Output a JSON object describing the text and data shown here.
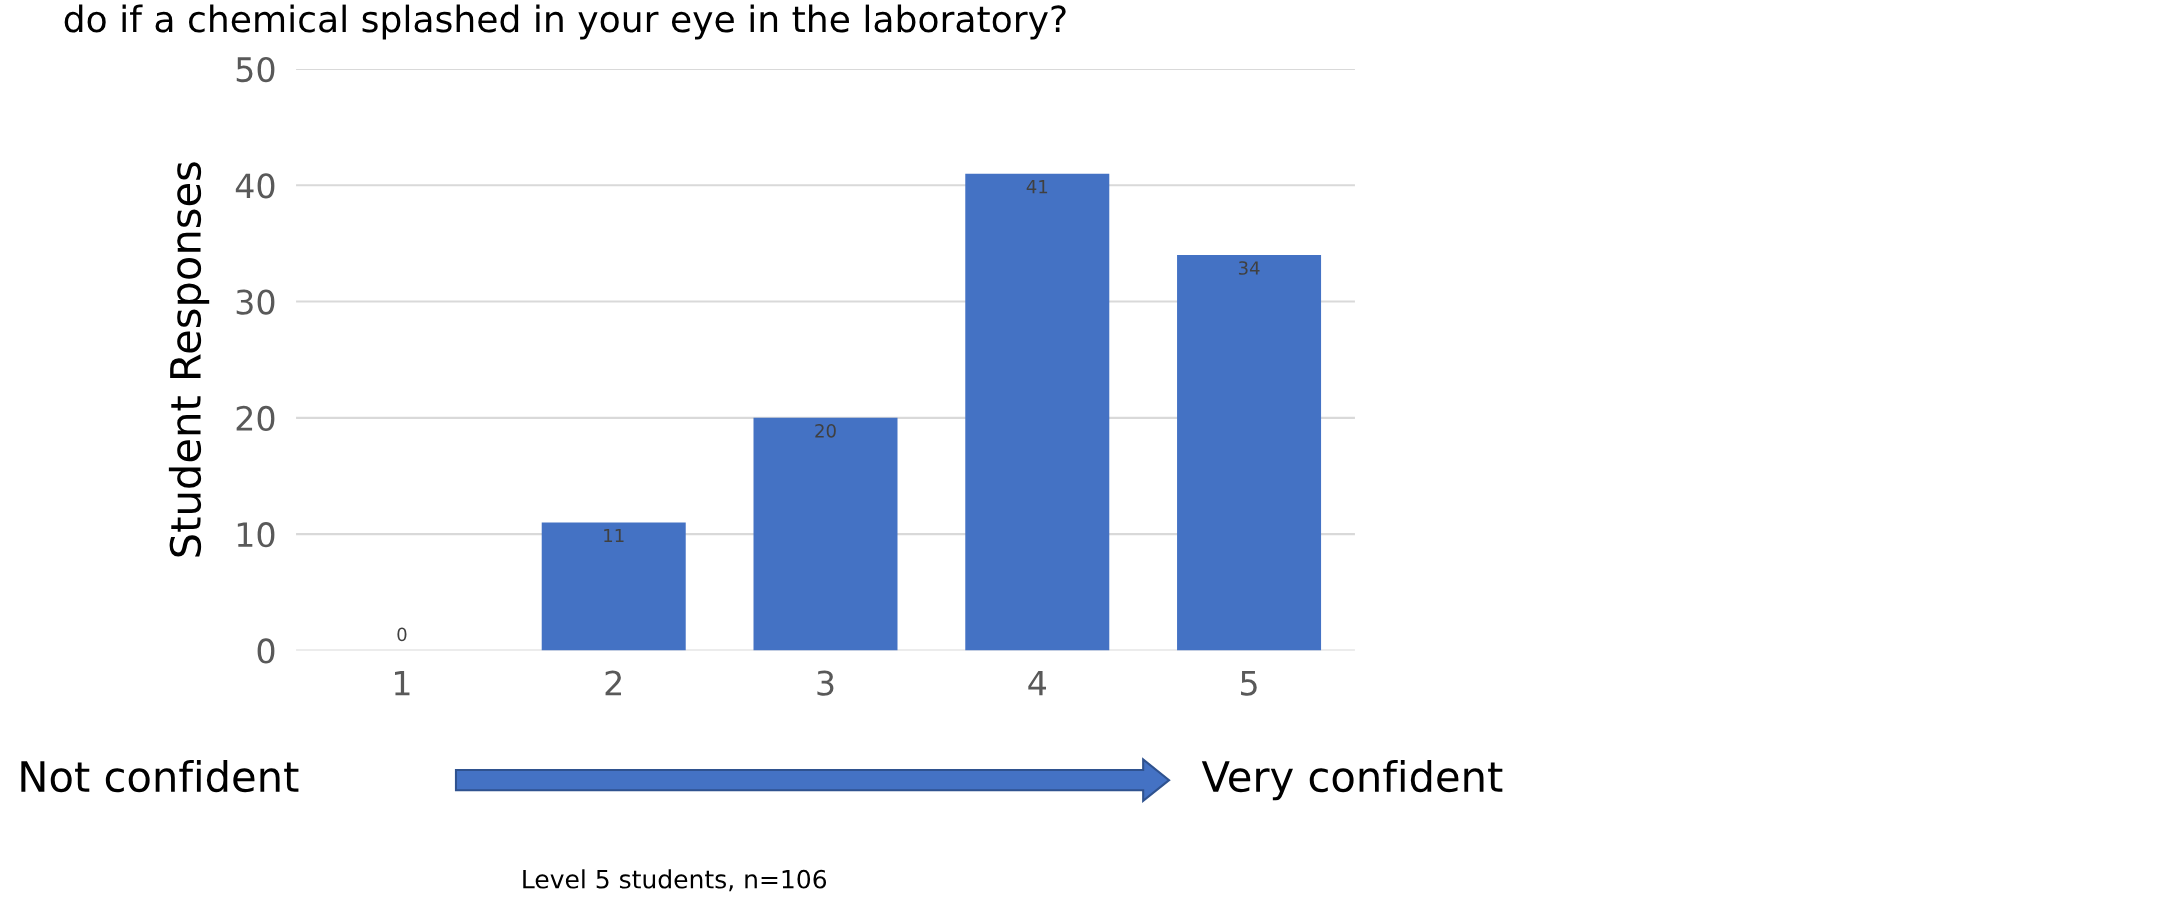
{
  "chart_data": {
    "type": "bar",
    "title": "do if a chemical splashed in your eye in the laboratory?",
    "ylabel": "Student Responses",
    "categories": [
      "1",
      "2",
      "3",
      "4",
      "5"
    ],
    "values": [
      0,
      11,
      20,
      41,
      34
    ],
    "color": "#4472c4",
    "ylim": [
      0,
      50
    ],
    "yticks": [
      0,
      10,
      20,
      30,
      40,
      50
    ],
    "grid": "y",
    "data_labels": true,
    "annotations": [
      "Not confident",
      "Very confident",
      "Level 5 students, n=106"
    ]
  }
}
